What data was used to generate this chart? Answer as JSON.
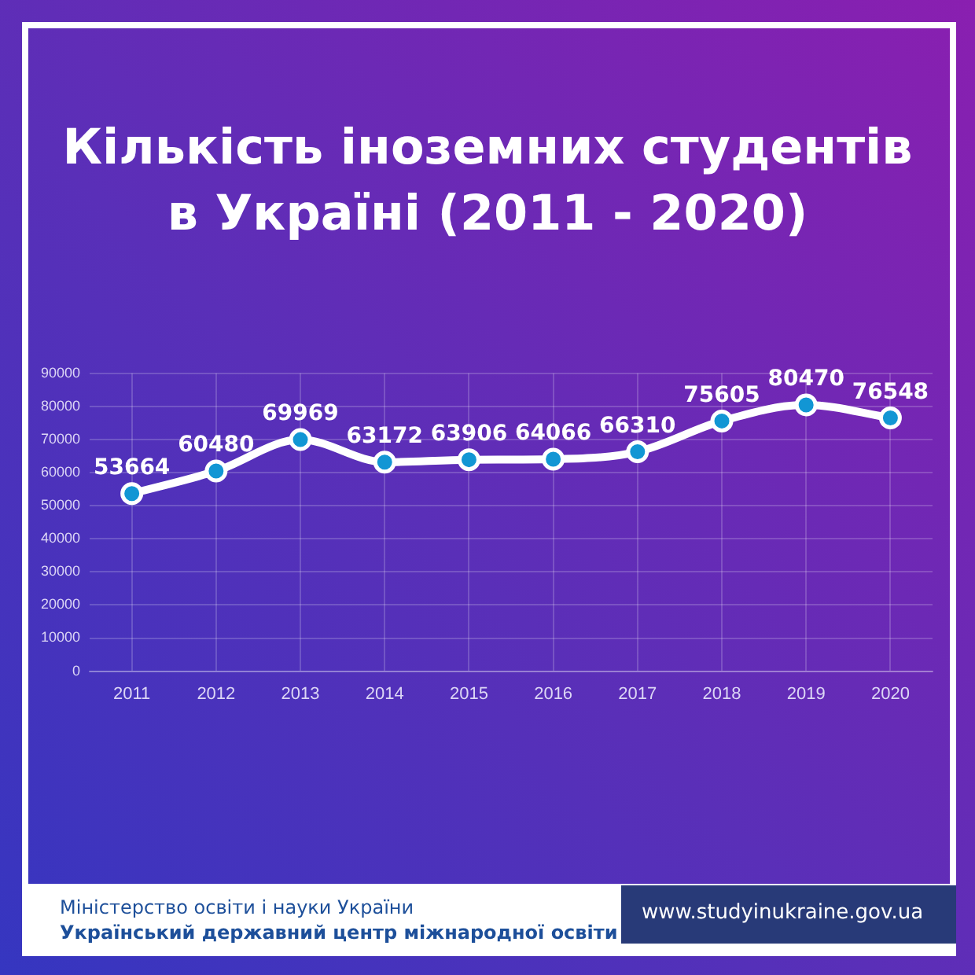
{
  "chart_data": {
    "type": "line",
    "title": "Кількість іноземних студентів в Україні (2011 - 2020)",
    "categories": [
      "2011",
      "2012",
      "2013",
      "2014",
      "2015",
      "2016",
      "2017",
      "2018",
      "2019",
      "2020"
    ],
    "series": [
      {
        "color": "#ffffff",
        "values": [
          53664,
          60480,
          69969,
          63172,
          63906,
          64066,
          66310,
          75605,
          80470,
          76548
        ]
      }
    ],
    "ylim": [
      0,
      90000
    ],
    "yticks": [
      0,
      10000,
      20000,
      30000,
      40000,
      50000,
      60000,
      70000,
      80000,
      90000
    ],
    "grid": true,
    "legend": false,
    "marker": "circle",
    "line_style": "solid",
    "data_labels": true,
    "annotations": [
      "Міністерство освіти і науки України",
      "Український державний центр міжнародної освіти",
      "www.studyinukraine.gov.ua"
    ]
  }
}
